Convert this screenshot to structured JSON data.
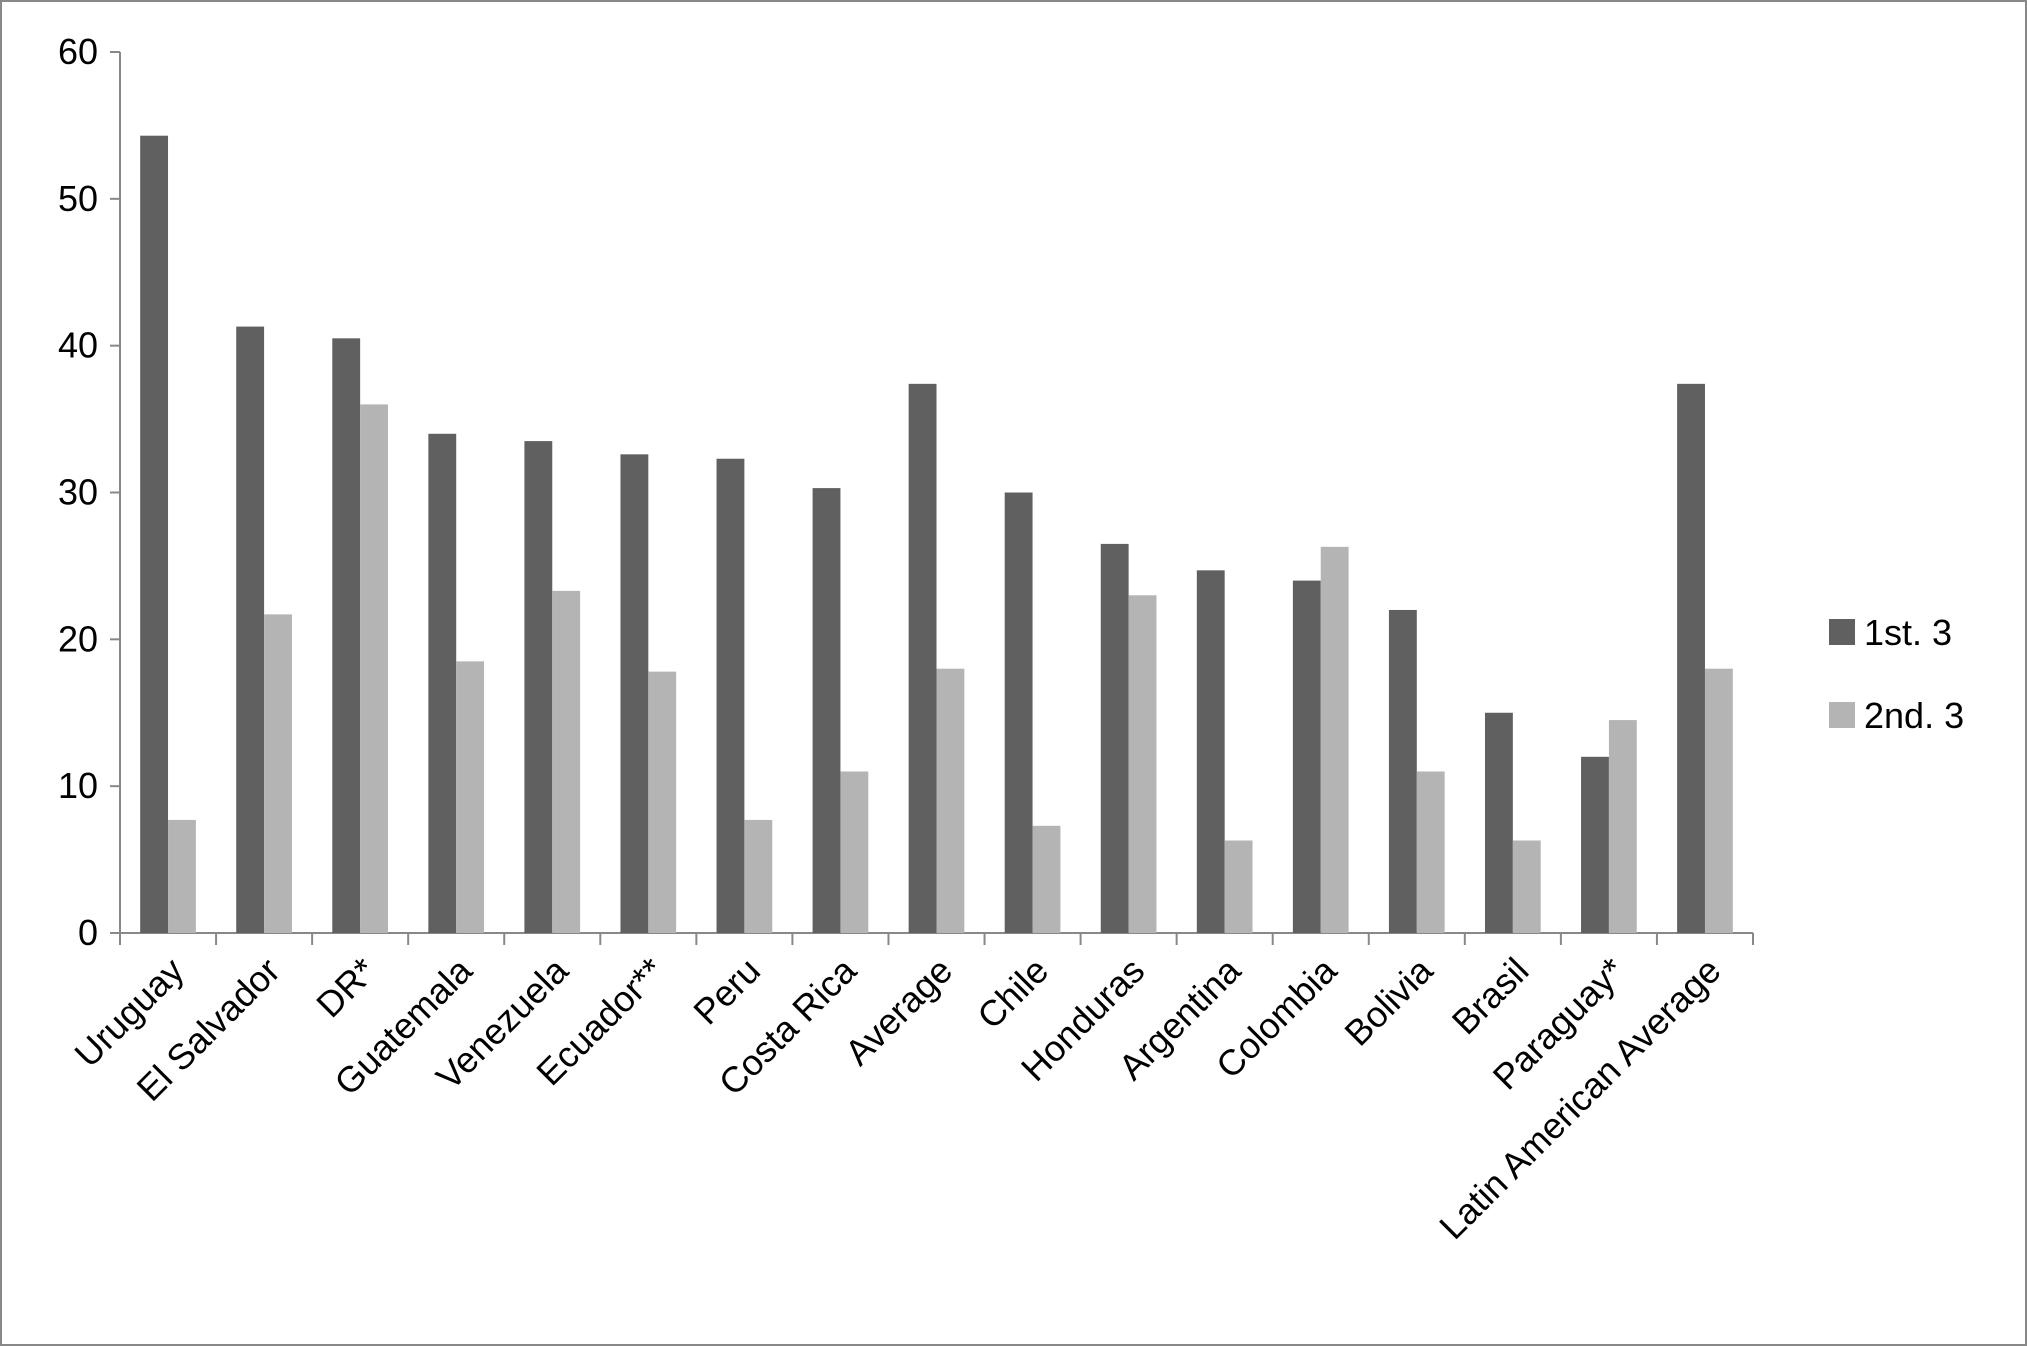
{
  "chart_data": {
    "type": "bar",
    "categories": [
      "Uruguay",
      "El Salvador",
      "DR*",
      "Guatemala",
      "Venezuela",
      "Ecuador**",
      "Peru",
      "Costa Rica",
      "Average",
      "Chile",
      "Honduras",
      "Argentina",
      "Colombia",
      "Bolivia",
      "Brasil",
      "Paraguay*",
      "Latin American Average"
    ],
    "series": [
      {
        "name": "1st. 3",
        "color": "#606060",
        "values": [
          54.3,
          41.3,
          40.5,
          34,
          33.5,
          32.6,
          32.3,
          30.3,
          37.4,
          30,
          26.5,
          24.7,
          24,
          22,
          15,
          12,
          37.4
        ]
      },
      {
        "name": "2nd. 3",
        "color": "#b4b4b4",
        "values": [
          7.7,
          21.7,
          36,
          18.5,
          23.3,
          17.8,
          7.7,
          11,
          18,
          7.3,
          23,
          6.3,
          26.3,
          11,
          6.3,
          14.5,
          18
        ]
      }
    ],
    "ylim": [
      0,
      60
    ],
    "yticks": [
      0,
      10,
      20,
      30,
      40,
      50,
      60
    ],
    "grid": false,
    "legend": "right"
  }
}
